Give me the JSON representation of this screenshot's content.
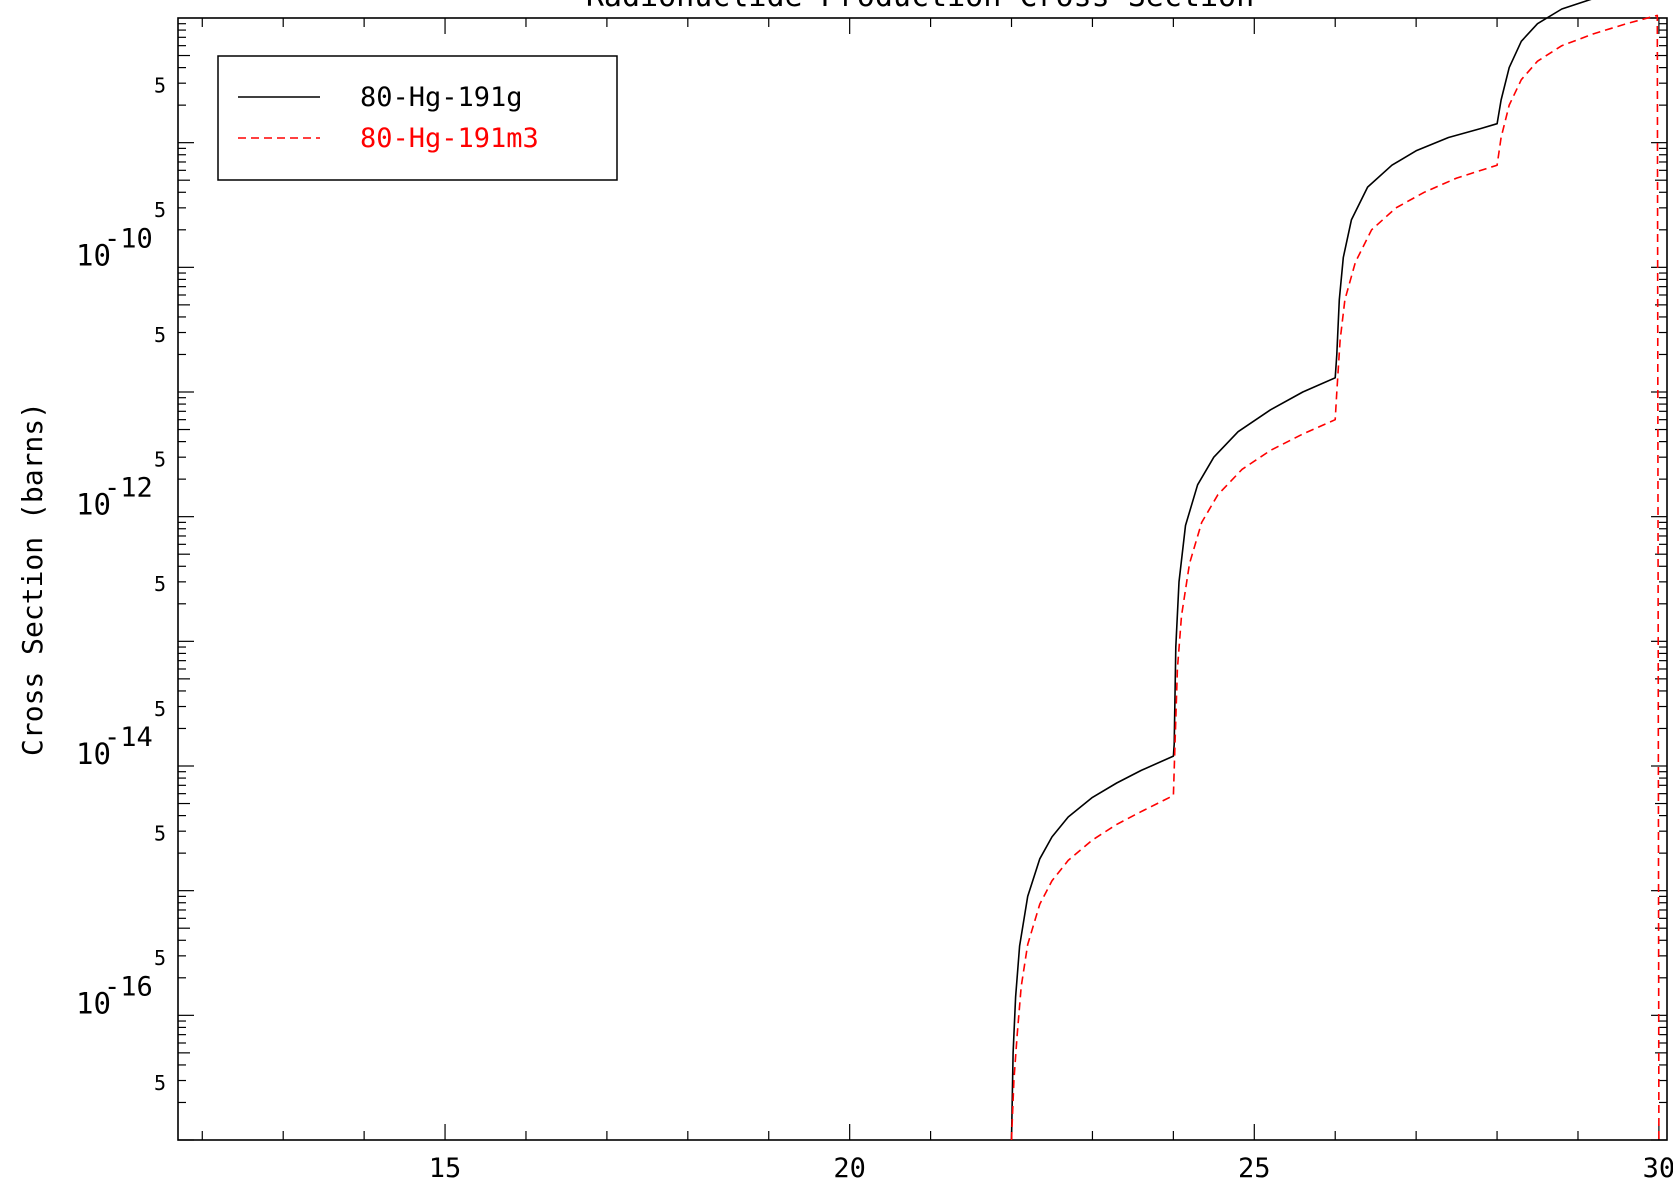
{
  "chart_data": {
    "type": "line",
    "title": "Radionuclide Production Cross Section",
    "xlabel": "",
    "ylabel": "Cross Section (barns)",
    "xlim": [
      11.7,
      30.1
    ],
    "ylim": [
      1e-17,
      1e-08
    ],
    "yscale": "log",
    "grid": false,
    "legend_position": "top-left",
    "x_ticks": [
      {
        "v": 15,
        "label": "15"
      },
      {
        "v": 20,
        "label": "20"
      },
      {
        "v": 25,
        "label": "25"
      },
      {
        "v": 30,
        "label": "30"
      }
    ],
    "y_major_ticks": [
      {
        "v": 1e-10,
        "base": "10",
        "exp": "-10"
      },
      {
        "v": 1e-12,
        "base": "10",
        "exp": "-12"
      },
      {
        "v": 1e-14,
        "base": "10",
        "exp": "-14"
      },
      {
        "v": 1e-16,
        "base": "10",
        "exp": "-16"
      }
    ],
    "y_five_ticks": [
      {
        "v": 5e-09,
        "label": "5"
      },
      {
        "v": 5e-10,
        "label": "5"
      },
      {
        "v": 5e-11,
        "label": "5"
      },
      {
        "v": 5e-12,
        "label": "5"
      },
      {
        "v": 5e-13,
        "label": "5"
      },
      {
        "v": 5e-14,
        "label": "5"
      },
      {
        "v": 5e-15,
        "label": "5"
      },
      {
        "v": 5e-16,
        "label": "5"
      },
      {
        "v": 5e-17,
        "label": "5"
      }
    ],
    "series": [
      {
        "name": "80-Hg-191g",
        "color": "#000000",
        "dash": "solid",
        "points": [
          [
            22.0,
            1e-17
          ],
          [
            22.02,
            5e-17
          ],
          [
            22.05,
            1.4e-16
          ],
          [
            22.1,
            3.6e-16
          ],
          [
            22.2,
            9e-16
          ],
          [
            22.35,
            1.8e-15
          ],
          [
            22.5,
            2.7e-15
          ],
          [
            22.7,
            3.9e-15
          ],
          [
            23.0,
            5.6e-15
          ],
          [
            23.3,
            7.3e-15
          ],
          [
            23.6,
            9.2e-15
          ],
          [
            24.0,
            1.2e-14
          ],
          [
            24.01,
            1.5e-14
          ],
          [
            24.03,
            9e-14
          ],
          [
            24.07,
            3e-13
          ],
          [
            24.15,
            8.5e-13
          ],
          [
            24.3,
            1.8e-12
          ],
          [
            24.5,
            3e-12
          ],
          [
            24.8,
            4.8e-12
          ],
          [
            25.2,
            7.2e-12
          ],
          [
            25.6,
            1e-11
          ],
          [
            26.0,
            1.3e-11
          ],
          [
            26.02,
            2e-11
          ],
          [
            26.05,
            5.5e-11
          ],
          [
            26.1,
            1.2e-10
          ],
          [
            26.2,
            2.4e-10
          ],
          [
            26.4,
            4.4e-10
          ],
          [
            26.7,
            6.6e-10
          ],
          [
            27.0,
            8.6e-10
          ],
          [
            27.4,
            1.1e-09
          ],
          [
            27.8,
            1.3e-09
          ],
          [
            28.0,
            1.42e-09
          ],
          [
            28.05,
            2.2e-09
          ],
          [
            28.15,
            4e-09
          ],
          [
            28.3,
            6.5e-09
          ],
          [
            28.5,
            9e-09
          ],
          [
            28.8,
            1.18e-08
          ],
          [
            29.2,
            1.44e-08
          ],
          [
            29.6,
            1.66e-08
          ],
          [
            30.0,
            1.88e-08
          ]
        ]
      },
      {
        "name": "80-Hg-191m3",
        "color": "#ff0000",
        "dash": "dashed",
        "points": [
          [
            22.0,
            1e-17
          ],
          [
            22.03,
            3e-17
          ],
          [
            22.07,
            7e-17
          ],
          [
            22.12,
            1.7e-16
          ],
          [
            22.2,
            3.7e-16
          ],
          [
            22.35,
            7.8e-16
          ],
          [
            22.5,
            1.2e-15
          ],
          [
            22.7,
            1.75e-15
          ],
          [
            23.0,
            2.55e-15
          ],
          [
            23.3,
            3.4e-15
          ],
          [
            23.6,
            4.3e-15
          ],
          [
            24.0,
            5.8e-15
          ],
          [
            24.02,
            1.5e-14
          ],
          [
            24.05,
            6e-14
          ],
          [
            24.1,
            1.6e-13
          ],
          [
            24.2,
            4.2e-13
          ],
          [
            24.35,
            9e-13
          ],
          [
            24.55,
            1.5e-12
          ],
          [
            24.85,
            2.4e-12
          ],
          [
            25.2,
            3.4e-12
          ],
          [
            25.6,
            4.6e-12
          ],
          [
            26.0,
            6e-12
          ],
          [
            26.02,
            1e-11
          ],
          [
            26.06,
            2.6e-11
          ],
          [
            26.12,
            5.5e-11
          ],
          [
            26.25,
            1.1e-10
          ],
          [
            26.45,
            2e-10
          ],
          [
            26.75,
            3e-10
          ],
          [
            27.1,
            4e-10
          ],
          [
            27.5,
            5.2e-10
          ],
          [
            28.0,
            6.6e-10
          ],
          [
            28.05,
            1.1e-09
          ],
          [
            28.15,
            2e-09
          ],
          [
            28.3,
            3.2e-09
          ],
          [
            28.5,
            4.5e-09
          ],
          [
            28.8,
            6e-09
          ],
          [
            29.2,
            7.5e-09
          ],
          [
            29.6,
            9e-09
          ],
          [
            29.98,
            1.05e-08
          ],
          [
            30.0,
            1e-17
          ]
        ]
      }
    ]
  }
}
